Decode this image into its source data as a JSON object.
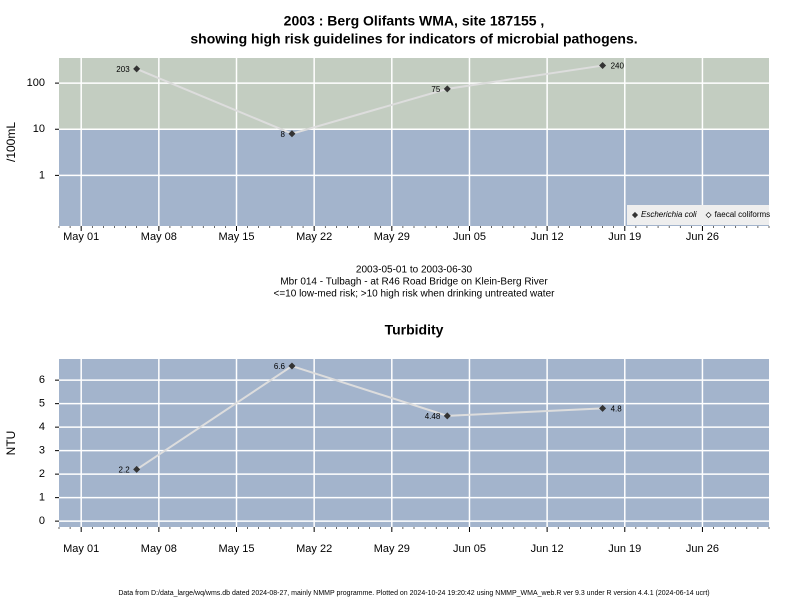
{
  "chart_data": [
    {
      "type": "line",
      "title": [
        "2003 : Berg Olifants WMA, site 187155 ,",
        "showing high risk guidelines for indicators of microbial pathogens."
      ],
      "subtitle": [
        "2003-05-01 to 2003-06-30",
        "Mbr 014 - Tulbagh - at R46 Road Bridge on Klein-Berg River",
        "<=10 low-med risk; >10 high risk when drinking untreated water"
      ],
      "y_label": "/100mL",
      "x": [
        "2003-05-06",
        "2003-05-20",
        "2003-06-03",
        "2003-06-17"
      ],
      "series": [
        {
          "name": "Escherichia coli",
          "color": "#333333",
          "values": [
            203,
            8,
            75,
            240
          ]
        },
        {
          "name": "faecal coliforms",
          "color": "#333333",
          "values": [
            null,
            null,
            null,
            null
          ]
        }
      ],
      "log_scale": true,
      "guideline": 10,
      "background": "#a3b4cc",
      "high_risk_color": "#c3cdc1",
      "line_color": "#dddddd",
      "grid": true,
      "legend": "bottom-right",
      "xlim": [
        "2003-04-29",
        "2003-07-02"
      ],
      "xticks": [
        {
          "value": "2003-05-01",
          "label": "May 01"
        },
        {
          "value": "2003-05-08",
          "label": "May 08"
        },
        {
          "value": "2003-05-15",
          "label": "May 15"
        },
        {
          "value": "2003-05-22",
          "label": "May 22"
        },
        {
          "value": "2003-05-29",
          "label": "May 29"
        },
        {
          "value": "2003-06-05",
          "label": "Jun 05"
        },
        {
          "value": "2003-06-12",
          "label": "Jun 12"
        },
        {
          "value": "2003-06-19",
          "label": "Jun 19"
        },
        {
          "value": "2003-06-26",
          "label": "Jun 26"
        }
      ],
      "ylim": [
        0.08,
        350
      ],
      "yticks": [
        1,
        10,
        100
      ]
    },
    {
      "type": "line",
      "title": [
        "Turbidity"
      ],
      "y_label": "NTU",
      "x": [
        "2003-05-06",
        "2003-05-20",
        "2003-06-03",
        "2003-06-17"
      ],
      "series": [
        {
          "name": "Turbidity",
          "color": "#333333",
          "values": [
            2.2,
            6.6,
            4.48,
            4.8
          ]
        }
      ],
      "log_scale": false,
      "background": "#a3b4cc",
      "line_color": "#dddddd",
      "grid": true,
      "xlim": [
        "2003-04-29",
        "2003-07-02"
      ],
      "xticks": [
        {
          "value": "2003-05-01",
          "label": "May 01"
        },
        {
          "value": "2003-05-08",
          "label": "May 08"
        },
        {
          "value": "2003-05-15",
          "label": "May 15"
        },
        {
          "value": "2003-05-22",
          "label": "May 22"
        },
        {
          "value": "2003-05-29",
          "label": "May 29"
        },
        {
          "value": "2003-06-05",
          "label": "Jun 05"
        },
        {
          "value": "2003-06-12",
          "label": "Jun 12"
        },
        {
          "value": "2003-06-19",
          "label": "Jun 19"
        },
        {
          "value": "2003-06-26",
          "label": "Jun 26"
        }
      ],
      "ylim": [
        -0.25,
        6.9
      ],
      "yticks": [
        0,
        1,
        2,
        3,
        4,
        5,
        6
      ]
    }
  ],
  "footer": "Data from D:/data_large/wq/wms.db dated 2024-08-27, mainly NMMP programme. Plotted on 2024-10-24 19:20:42 using NMMP_WMA_web.R ver 9.3 under R version 4.4.1 (2024-06-14 ucrt)"
}
